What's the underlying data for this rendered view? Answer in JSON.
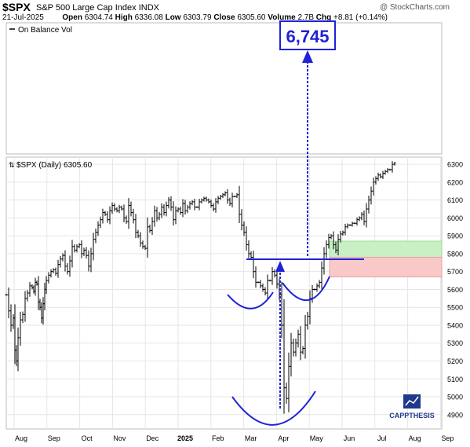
{
  "header": {
    "symbol": "$SPX",
    "name": "S&P 500 Large Cap Index",
    "exchange": "INDX",
    "watermark": "@ StockCharts.com",
    "date": "21-Jul-2025",
    "open_label": "Open",
    "open": "6304.74",
    "high_label": "High",
    "high": "6336.08",
    "low_label": "Low",
    "low": "6303.79",
    "close_label": "Close",
    "close": "6305.60",
    "volume_label": "Volume",
    "volume": "2.7B",
    "chg_label": "Chg",
    "chg": "+8.81 (+0.14%)"
  },
  "top_panel": {
    "legend": "On Balance Vol"
  },
  "price_panel": {
    "legend": "$SPX (Daily) 6305.60"
  },
  "target_label": "6,745",
  "logo": "CAPPTHESIS",
  "colors": {
    "price_bar": "#000000",
    "annotation": "#1f22d6",
    "green_zone": "#c8f0c4",
    "red_zone": "#f9c8c9",
    "grid": "#e6e6e6"
  },
  "chart_data": {
    "type": "ohlc",
    "ylim": [
      4820,
      6340
    ],
    "y_ticks": [
      4900,
      5000,
      5100,
      5200,
      5300,
      5400,
      5500,
      5600,
      5700,
      5800,
      5900,
      6000,
      6100,
      6200,
      6300
    ],
    "x_ticks": [
      "Aug",
      "Sep",
      "Oct",
      "Nov",
      "Dec",
      "2025",
      "Feb",
      "Mar",
      "Apr",
      "May",
      "Jun",
      "Jul",
      "Aug",
      "Sep"
    ],
    "series": [
      {
        "values": [
          [
            0,
            5570
          ],
          [
            3,
            5480
          ],
          [
            6,
            5400
          ],
          [
            9,
            5440
          ],
          [
            11,
            5260
          ],
          [
            13,
            5200
          ],
          [
            15,
            5330
          ],
          [
            18,
            5430
          ],
          [
            21,
            5460
          ],
          [
            24,
            5550
          ],
          [
            27,
            5580
          ],
          [
            30,
            5620
          ],
          [
            33,
            5610
          ],
          [
            35,
            5590
          ],
          [
            37,
            5640
          ],
          [
            39,
            5630
          ],
          [
            41,
            5530
          ],
          [
            43,
            5500
          ],
          [
            45,
            5440
          ],
          [
            47,
            5520
          ],
          [
            49,
            5600
          ],
          [
            51,
            5650
          ],
          [
            54,
            5680
          ],
          [
            57,
            5700
          ],
          [
            60,
            5710
          ],
          [
            63,
            5690
          ],
          [
            66,
            5740
          ],
          [
            69,
            5770
          ],
          [
            72,
            5790
          ],
          [
            75,
            5730
          ],
          [
            78,
            5700
          ],
          [
            81,
            5760
          ],
          [
            84,
            5840
          ],
          [
            87,
            5820
          ],
          [
            90,
            5840
          ],
          [
            93,
            5850
          ],
          [
            96,
            5800
          ],
          [
            99,
            5820
          ],
          [
            102,
            5790
          ],
          [
            105,
            5730
          ],
          [
            108,
            5800
          ],
          [
            111,
            5880
          ],
          [
            114,
            5920
          ],
          [
            117,
            5960
          ],
          [
            120,
            5990
          ],
          [
            123,
            6030
          ],
          [
            126,
            6020
          ],
          [
            129,
            5990
          ],
          [
            132,
            6040
          ],
          [
            135,
            6070
          ],
          [
            138,
            6050
          ],
          [
            141,
            6040
          ],
          [
            144,
            6060
          ],
          [
            147,
            6050
          ],
          [
            150,
            6000
          ],
          [
            153,
            5980
          ],
          [
            156,
            6070
          ],
          [
            159,
            6030
          ],
          [
            162,
            5990
          ],
          [
            165,
            5920
          ],
          [
            168,
            5900
          ],
          [
            171,
            5860
          ],
          [
            174,
            5840
          ],
          [
            177,
            5830
          ],
          [
            180,
            5950
          ],
          [
            183,
            5930
          ],
          [
            186,
            5980
          ],
          [
            189,
            6040
          ],
          [
            192,
            6000
          ],
          [
            195,
            6020
          ],
          [
            198,
            6060
          ],
          [
            201,
            6030
          ],
          [
            204,
            6070
          ],
          [
            207,
            6100
          ],
          [
            210,
            6060
          ],
          [
            213,
            5990
          ],
          [
            216,
            6040
          ],
          [
            219,
            6050
          ],
          [
            222,
            6030
          ],
          [
            225,
            6080
          ],
          [
            228,
            6040
          ],
          [
            231,
            6060
          ],
          [
            234,
            6080
          ],
          [
            237,
            6090
          ],
          [
            240,
            6060
          ],
          [
            243,
            6060
          ],
          [
            246,
            6090
          ],
          [
            249,
            6100
          ],
          [
            252,
            6110
          ],
          [
            255,
            6100
          ],
          [
            258,
            6090
          ],
          [
            261,
            6070
          ],
          [
            264,
            6050
          ],
          [
            267,
            6090
          ],
          [
            270,
            6110
          ],
          [
            273,
            6120
          ],
          [
            276,
            6130
          ],
          [
            279,
            6140
          ],
          [
            282,
            6100
          ],
          [
            285,
            6080
          ],
          [
            288,
            6120
          ],
          [
            291,
            6120
          ],
          [
            294,
            6130
          ],
          [
            297,
            6020
          ],
          [
            300,
            5960
          ],
          [
            303,
            5920
          ],
          [
            306,
            5850
          ],
          [
            309,
            5800
          ],
          [
            312,
            5780
          ],
          [
            315,
            5700
          ],
          [
            318,
            5640
          ],
          [
            321,
            5640
          ],
          [
            324,
            5620
          ],
          [
            327,
            5600
          ],
          [
            330,
            5580
          ],
          [
            333,
            5650
          ],
          [
            336,
            5650
          ],
          [
            339,
            5700
          ],
          [
            342,
            5680
          ],
          [
            345,
            5630
          ],
          [
            348,
            5570
          ],
          [
            351,
            5400
          ],
          [
            354,
            5050
          ],
          [
            357,
            4990
          ],
          [
            360,
            5170
          ],
          [
            363,
            5300
          ],
          [
            366,
            5250
          ],
          [
            369,
            5300
          ],
          [
            372,
            5350
          ],
          [
            375,
            5250
          ],
          [
            378,
            5270
          ],
          [
            381,
            5400
          ],
          [
            384,
            5450
          ],
          [
            387,
            5550
          ],
          [
            390,
            5600
          ],
          [
            393,
            5600
          ],
          [
            396,
            5620
          ],
          [
            399,
            5640
          ],
          [
            402,
            5720
          ],
          [
            405,
            5800
          ],
          [
            408,
            5850
          ],
          [
            411,
            5890
          ],
          [
            414,
            5900
          ],
          [
            417,
            5850
          ],
          [
            420,
            5820
          ],
          [
            423,
            5880
          ],
          [
            426,
            5910
          ],
          [
            429,
            5920
          ],
          [
            432,
            5950
          ],
          [
            435,
            5960
          ],
          [
            438,
            5960
          ],
          [
            441,
            5970
          ],
          [
            444,
            5970
          ],
          [
            447,
            5990
          ],
          [
            450,
            6000
          ],
          [
            453,
            6020
          ],
          [
            456,
            5980
          ],
          [
            459,
            6050
          ],
          [
            462,
            6100
          ],
          [
            465,
            6150
          ],
          [
            468,
            6200
          ],
          [
            471,
            6220
          ],
          [
            474,
            6240
          ],
          [
            477,
            6230
          ],
          [
            480,
            6250
          ],
          [
            483,
            6260
          ],
          [
            486,
            6270
          ],
          [
            489,
            6270
          ],
          [
            492,
            6300
          ],
          [
            495,
            6306
          ]
        ]
      }
    ]
  }
}
